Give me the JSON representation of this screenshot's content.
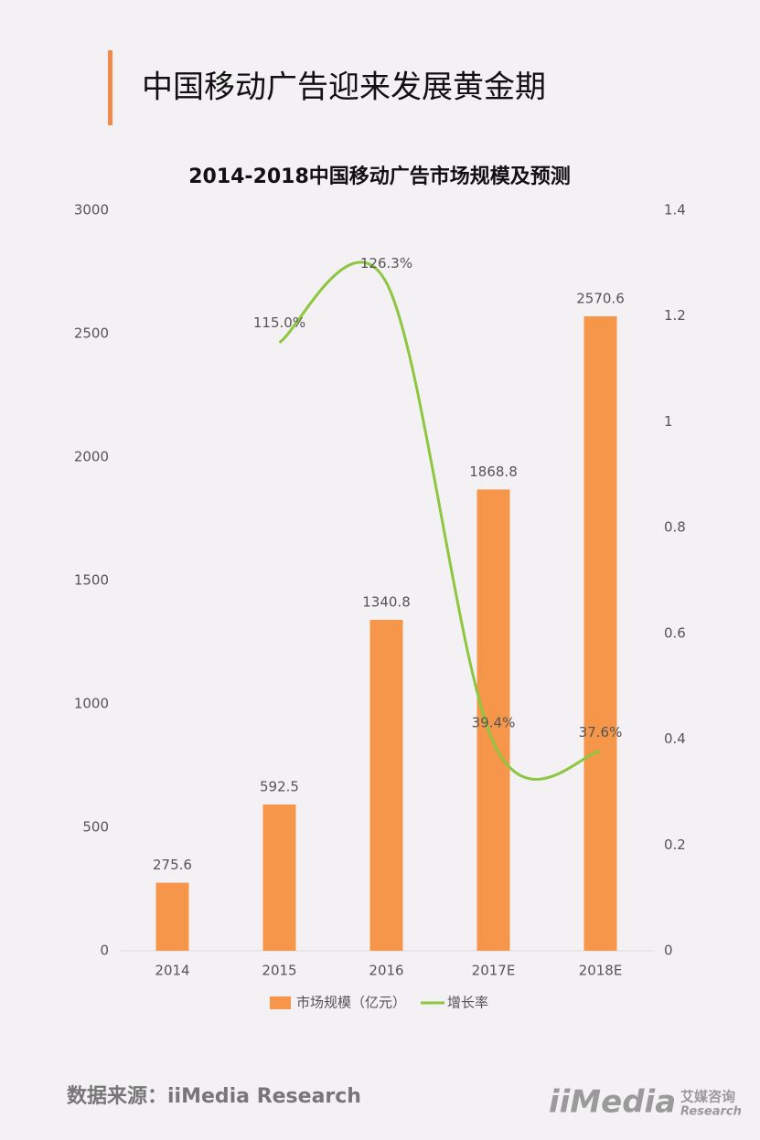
{
  "header": {
    "title": "中国移动广告迎来发展黄金期"
  },
  "chart_data": {
    "type": "bar-line",
    "title": "2014-2018中国移动广告市场规模及预测",
    "categories": [
      "2014",
      "2015",
      "2016",
      "2017E",
      "2018E"
    ],
    "series": [
      {
        "name": "市场规模（亿元）",
        "type": "bar",
        "color": "#f5964a",
        "values": [
          275.6,
          592.5,
          1340.8,
          1868.8,
          2570.6
        ]
      },
      {
        "name": "增长率",
        "type": "line",
        "axis": "y2",
        "color": "#8dc63f",
        "values": [
          null,
          1.15,
          1.263,
          0.394,
          0.376
        ],
        "value_labels": [
          null,
          "115.0%",
          "126.3%",
          "39.4%",
          "37.6%"
        ]
      }
    ],
    "ylim": [
      0,
      3000
    ],
    "yticks": [
      0,
      500,
      1000,
      1500,
      2000,
      2500,
      3000
    ],
    "y2lim": [
      0,
      1.4
    ],
    "y2ticks": [
      0,
      0.2,
      0.4,
      0.6,
      0.8,
      1,
      1.2,
      1.4
    ],
    "legend": "bottom",
    "grid": false
  },
  "footer": {
    "source": "数据来源：iiMedia Research",
    "logo": "iiMedia",
    "logo_cn": "艾媒咨询",
    "logo_en": "Research"
  }
}
